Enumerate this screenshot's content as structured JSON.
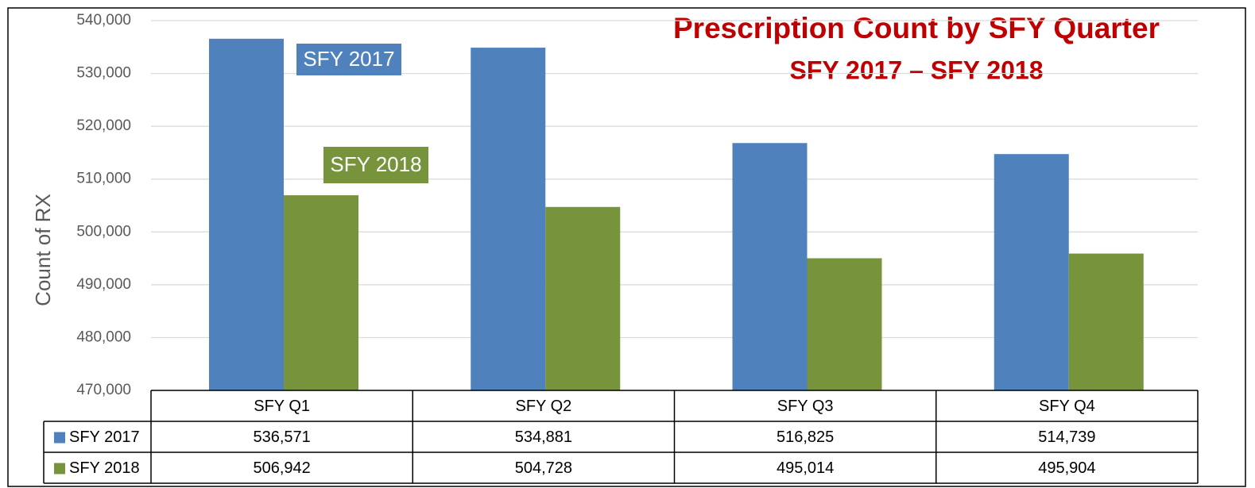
{
  "chart_data": {
    "type": "bar",
    "title": "Prescription Count by SFY Quarter",
    "subtitle": "SFY 2017 – SFY 2018",
    "y_label": "Count of RX",
    "categories": [
      "SFY Q1",
      "SFY Q2",
      "SFY Q3",
      "SFY Q4"
    ],
    "series": [
      {
        "name": "SFY 2017",
        "color": "#4f81bd",
        "values": [
          536571,
          534881,
          516825,
          514739
        ],
        "value_labels": [
          "536,571",
          "534,881",
          "516,825",
          "514,739"
        ]
      },
      {
        "name": "SFY 2018",
        "color": "#77933c",
        "values": [
          506942,
          504728,
          495014,
          495904
        ],
        "value_labels": [
          "506,942",
          "504,728",
          "495,014",
          "495,904"
        ]
      }
    ],
    "ylim": [
      470000,
      540000
    ],
    "yticks": [
      {
        "value": 470000,
        "label": "470,000"
      },
      {
        "value": 480000,
        "label": "480,000"
      },
      {
        "value": 490000,
        "label": "490,000"
      },
      {
        "value": 500000,
        "label": "500,000"
      },
      {
        "value": 510000,
        "label": "510,000"
      },
      {
        "value": 520000,
        "label": "520,000"
      },
      {
        "value": 530000,
        "label": "530,000"
      },
      {
        "value": 540000,
        "label": "540,000"
      }
    ],
    "grid": true
  }
}
